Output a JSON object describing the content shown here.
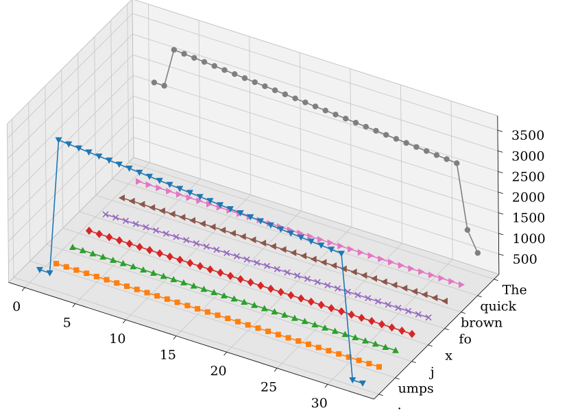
{
  "chart_data": {
    "type": "line",
    "title": "",
    "xlabel": "",
    "ylabel": "",
    "zlabel": "",
    "x_ticks": [
      0,
      5,
      10,
      15,
      20,
      25,
      30
    ],
    "z_ticks": [
      500,
      1000,
      1500,
      2000,
      2500,
      3000,
      3500
    ],
    "y_tick_labels": [
      "The",
      "quick",
      "brown",
      "fo",
      "x",
      "j",
      "umps",
      "."
    ],
    "xlim": [
      -1.6,
      34.6
    ],
    "zlim": [
      10,
      3850
    ],
    "grid": true,
    "series": [
      {
        "lane": 0,
        "color": "#7f7f7f",
        "marker": "circle",
        "x": [
          1,
          2,
          3,
          4,
          5,
          6,
          7,
          8,
          9,
          10,
          11,
          12,
          13,
          14,
          15,
          16,
          17,
          18,
          19,
          20,
          21,
          22,
          23,
          24,
          25,
          26,
          27,
          28,
          29,
          30,
          31,
          32,
          33
        ],
        "z": [
          2150,
          2150,
          3100,
          3080,
          3060,
          3040,
          3020,
          3000,
          2980,
          2960,
          2940,
          2920,
          2900,
          2880,
          2860,
          2840,
          2820,
          2800,
          2780,
          2760,
          2740,
          2720,
          2700,
          2680,
          2660,
          2640,
          2620,
          2600,
          2580,
          2560,
          2540,
          1000,
          520
        ]
      },
      {
        "lane": 1,
        "color": "#e377c2",
        "marker": "triangle-right",
        "x": [
          1,
          2,
          3,
          4,
          5,
          6,
          7,
          8,
          9,
          10,
          11,
          12,
          13,
          14,
          15,
          16,
          17,
          18,
          19,
          20,
          21,
          22,
          23,
          24,
          25,
          26,
          27,
          28,
          29,
          30,
          31,
          32,
          33
        ],
        "z": [
          150,
          150,
          150,
          150,
          150,
          150,
          150,
          150,
          150,
          150,
          150,
          150,
          150,
          150,
          150,
          150,
          150,
          150,
          150,
          150,
          150,
          150,
          150,
          150,
          150,
          150,
          150,
          150,
          150,
          150,
          150,
          150,
          150
        ]
      },
      {
        "lane": 2,
        "color": "#8c564b",
        "marker": "triangle-left",
        "x": [
          1,
          2,
          3,
          4,
          5,
          6,
          7,
          8,
          9,
          10,
          11,
          12,
          13,
          14,
          15,
          16,
          17,
          18,
          19,
          20,
          21,
          22,
          23,
          24,
          25,
          26,
          27,
          28,
          29,
          30,
          31,
          32,
          33
        ],
        "z": [
          150,
          150,
          150,
          150,
          150,
          150,
          150,
          150,
          150,
          150,
          150,
          150,
          150,
          150,
          150,
          150,
          150,
          150,
          150,
          150,
          150,
          150,
          150,
          150,
          150,
          150,
          150,
          150,
          150,
          150,
          150,
          150,
          150
        ]
      },
      {
        "lane": 3,
        "color": "#9467bd",
        "marker": "x",
        "x": [
          1,
          2,
          3,
          4,
          5,
          6,
          7,
          8,
          9,
          10,
          11,
          12,
          13,
          14,
          15,
          16,
          17,
          18,
          19,
          20,
          21,
          22,
          23,
          24,
          25,
          26,
          27,
          28,
          29,
          30,
          31,
          32,
          33
        ],
        "z": [
          150,
          150,
          150,
          150,
          150,
          150,
          150,
          150,
          150,
          150,
          150,
          150,
          150,
          150,
          150,
          150,
          150,
          150,
          150,
          150,
          150,
          150,
          150,
          150,
          150,
          150,
          150,
          150,
          150,
          150,
          150,
          150,
          150
        ]
      },
      {
        "lane": 4,
        "color": "#d62728",
        "marker": "diamond",
        "x": [
          1,
          2,
          3,
          4,
          5,
          6,
          7,
          8,
          9,
          10,
          11,
          12,
          13,
          14,
          15,
          16,
          17,
          18,
          19,
          20,
          21,
          22,
          23,
          24,
          25,
          26,
          27,
          28,
          29,
          30,
          31,
          32,
          33
        ],
        "z": [
          150,
          150,
          150,
          150,
          150,
          150,
          150,
          150,
          150,
          150,
          150,
          150,
          150,
          150,
          150,
          150,
          150,
          150,
          150,
          150,
          150,
          150,
          150,
          150,
          150,
          150,
          150,
          150,
          150,
          150,
          150,
          150,
          150
        ]
      },
      {
        "lane": 5,
        "color": "#2ca02c",
        "marker": "triangle-up",
        "x": [
          1,
          2,
          3,
          4,
          5,
          6,
          7,
          8,
          9,
          10,
          11,
          12,
          13,
          14,
          15,
          16,
          17,
          18,
          19,
          20,
          21,
          22,
          23,
          24,
          25,
          26,
          27,
          28,
          29,
          30,
          31,
          32,
          33
        ],
        "z": [
          150,
          150,
          150,
          150,
          150,
          150,
          150,
          150,
          150,
          150,
          150,
          150,
          150,
          150,
          150,
          150,
          150,
          150,
          150,
          150,
          150,
          150,
          150,
          150,
          150,
          150,
          150,
          150,
          150,
          150,
          150,
          150,
          150
        ]
      },
      {
        "lane": 6,
        "color": "#ff7f0e",
        "marker": "square",
        "x": [
          1,
          2,
          3,
          4,
          5,
          6,
          7,
          8,
          9,
          10,
          11,
          12,
          13,
          14,
          15,
          16,
          17,
          18,
          19,
          20,
          21,
          22,
          23,
          24,
          25,
          26,
          27,
          28,
          29,
          30,
          31,
          32,
          33
        ],
        "z": [
          150,
          150,
          150,
          150,
          150,
          150,
          150,
          150,
          150,
          150,
          150,
          150,
          150,
          150,
          150,
          150,
          150,
          150,
          150,
          150,
          150,
          150,
          150,
          150,
          150,
          150,
          150,
          150,
          150,
          150,
          150,
          150,
          150
        ]
      },
      {
        "lane": 7,
        "color": "#1f77b4",
        "marker": "triangle-down",
        "x": [
          1,
          2,
          3,
          4,
          5,
          6,
          7,
          8,
          9,
          10,
          11,
          12,
          13,
          14,
          15,
          16,
          17,
          18,
          19,
          20,
          21,
          22,
          23,
          24,
          25,
          26,
          27,
          28,
          29,
          30,
          31,
          32,
          33
        ],
        "z": [
          400,
          400,
          3700,
          3680,
          3660,
          3640,
          3620,
          3600,
          3580,
          3560,
          3540,
          3520,
          3500,
          3480,
          3460,
          3440,
          3420,
          3400,
          3380,
          3360,
          3340,
          3320,
          3300,
          3280,
          3260,
          3240,
          3220,
          3200,
          3180,
          3160,
          3140,
          150,
          150
        ]
      }
    ]
  }
}
